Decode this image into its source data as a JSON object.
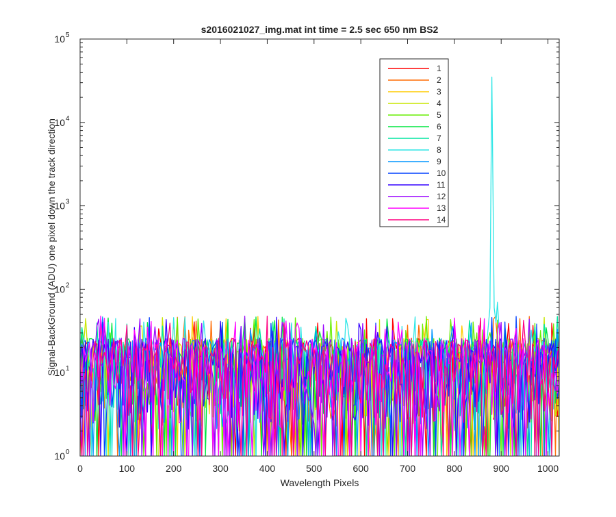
{
  "chart_data": {
    "type": "line",
    "title": "s2016021027_img.mat int time = 2.5 sec  650 nm BS2",
    "xlabel": "Wavelength Pixels",
    "ylabel": "Signal-BackGround (ADU) one pixel down the track direction",
    "xlim": [
      0,
      1024
    ],
    "ylim": [
      1,
      100000
    ],
    "yscale": "log",
    "grid": false,
    "legend_position": "top-right",
    "x_ticks": [
      0,
      100,
      200,
      300,
      400,
      500,
      600,
      700,
      800,
      900,
      1000
    ],
    "x_tick_labels": [
      "0",
      "100",
      "200",
      "300",
      "400",
      "500",
      "600",
      "700",
      "800",
      "900",
      "1000"
    ],
    "y_ticks": [
      1,
      10,
      100,
      1000,
      10000,
      100000
    ],
    "y_tick_labels": [
      {
        "base": "10",
        "exp": "0"
      },
      {
        "base": "10",
        "exp": "1"
      },
      {
        "base": "10",
        "exp": "2"
      },
      {
        "base": "10",
        "exp": "3"
      },
      {
        "base": "10",
        "exp": "4"
      },
      {
        "base": "10",
        "exp": "5"
      }
    ],
    "noise": {
      "typical_min": 1,
      "typical_max": 40,
      "x_start": 0,
      "x_end": 1024,
      "x_step": 4
    },
    "series": [
      {
        "name": "1",
        "color": "#ff0000"
      },
      {
        "name": "2",
        "color": "#ff6a00"
      },
      {
        "name": "3",
        "color": "#ffcc00"
      },
      {
        "name": "4",
        "color": "#c8e600"
      },
      {
        "name": "5",
        "color": "#66ee00"
      },
      {
        "name": "6",
        "color": "#00e640"
      },
      {
        "name": "7",
        "color": "#00e6a0"
      },
      {
        "name": "8",
        "color": "#2ee6e6",
        "peak": [
          [
            870,
            25
          ],
          [
            876,
            60
          ],
          [
            880,
            35000
          ],
          [
            885,
            60
          ],
          [
            889,
            40
          ],
          [
            892,
            70
          ],
          [
            896,
            30
          ]
        ]
      },
      {
        "name": "9",
        "color": "#0096ff"
      },
      {
        "name": "10",
        "color": "#0040ff"
      },
      {
        "name": "11",
        "color": "#3300ff"
      },
      {
        "name": "12",
        "color": "#9900ff"
      },
      {
        "name": "13",
        "color": "#ff00ff"
      },
      {
        "name": "14",
        "color": "#ff0080"
      }
    ]
  }
}
